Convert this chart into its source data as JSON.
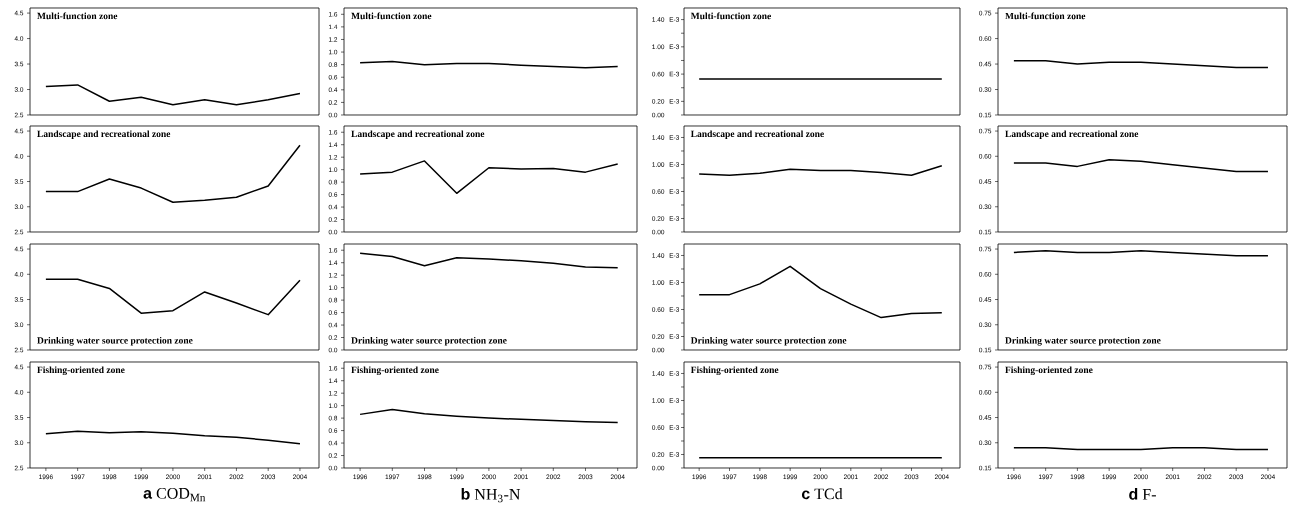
{
  "chart_data": [
    {
      "type": "line",
      "title": "Multi-function zone",
      "x": [
        1996,
        1997,
        1998,
        1999,
        2000,
        2001,
        2002,
        2003,
        2004
      ],
      "values": [
        3.06,
        3.09,
        2.77,
        2.85,
        2.7,
        2.8,
        2.7,
        2.8,
        2.92
      ],
      "color": "#000000",
      "xlim": [
        1995.5,
        2004.6
      ],
      "ylim": [
        2.5,
        4.6
      ],
      "yticks": [
        {
          "value": 2.5,
          "label": "2.5"
        },
        {
          "value": 3,
          "label": "3.0"
        },
        {
          "value": 3.5,
          "label": "3.5"
        },
        {
          "value": 4,
          "label": "4.0"
        },
        {
          "value": 4.5,
          "label": "4.5"
        }
      ],
      "tick_labels": "y"
    },
    {
      "type": "line",
      "title": "Multi-function zone",
      "x": [
        1996,
        1997,
        1998,
        1999,
        2000,
        2001,
        2002,
        2003,
        2004
      ],
      "values": [
        0.83,
        0.85,
        0.8,
        0.82,
        0.82,
        0.79,
        0.77,
        0.75,
        0.77
      ],
      "color": "#000000",
      "xlim": [
        1995.5,
        2004.6
      ],
      "ylim": [
        0,
        1.7
      ],
      "yticks": [
        {
          "value": 0,
          "label": "0.0"
        },
        {
          "value": 0.2,
          "label": "0.2"
        },
        {
          "value": 0.4,
          "label": "0.4"
        },
        {
          "value": 0.6,
          "label": "0.6"
        },
        {
          "value": 0.8,
          "label": "0.8"
        },
        {
          "value": 1,
          "label": "1.0"
        },
        {
          "value": 1.2,
          "label": "1.2"
        },
        {
          "value": 1.4,
          "label": "1.4"
        },
        {
          "value": 1.6,
          "label": "1.6"
        }
      ],
      "tick_labels": "y"
    },
    {
      "type": "line",
      "title": "Multi-function zone",
      "x": [
        1996,
        1997,
        1998,
        1999,
        2000,
        2001,
        2002,
        2003,
        2004
      ],
      "values": [
        0.53,
        0.53,
        0.53,
        0.53,
        0.53,
        0.53,
        0.53,
        0.53,
        0.53
      ],
      "color": "#000000",
      "xlim": [
        1995.5,
        2004.6
      ],
      "ylim": [
        0,
        1.57
      ],
      "yticks": [
        {
          "value": 0,
          "label": "0.00"
        },
        {
          "value": 0.2,
          "label": "0.20"
        },
        {
          "value": 0.4,
          "label": null
        },
        {
          "value": 0.6,
          "label": "0.60"
        },
        {
          "value": 0.8,
          "label": null
        },
        {
          "value": 1,
          "label": "1.00"
        },
        {
          "value": 1.2,
          "label": null
        },
        {
          "value": 1.4,
          "label": "1.40"
        }
      ],
      "annotations": [
        "E-3",
        "E-3",
        "E-3",
        "E-3"
      ],
      "tick_labels": "y"
    },
    {
      "type": "line",
      "title": "Multi-function zone",
      "x": [
        1996,
        1997,
        1998,
        1999,
        2000,
        2001,
        2002,
        2003,
        2004
      ],
      "values": [
        0.47,
        0.47,
        0.45,
        0.46,
        0.46,
        0.45,
        0.44,
        0.43,
        0.43
      ],
      "color": "#000000",
      "xlim": [
        1995.5,
        2004.6
      ],
      "ylim": [
        0.15,
        0.78
      ],
      "yticks": [
        {
          "value": 0.15,
          "label": "0.15"
        },
        {
          "value": 0.3,
          "label": "0.30"
        },
        {
          "value": 0.45,
          "label": "0.45"
        },
        {
          "value": 0.6,
          "label": "0.60"
        },
        {
          "value": 0.75,
          "label": "0.75"
        }
      ],
      "tick_labels": "y"
    },
    {
      "type": "line",
      "title": "Landscape and recreational zone",
      "x": [
        1996,
        1997,
        1998,
        1999,
        2000,
        2001,
        2002,
        2003,
        2004
      ],
      "values": [
        3.3,
        3.3,
        3.55,
        3.37,
        3.09,
        3.13,
        3.19,
        3.41,
        4.22
      ],
      "color": "#000000",
      "xlim": [
        1995.5,
        2004.6
      ],
      "ylim": [
        2.5,
        4.6
      ],
      "yticks": [
        {
          "value": 2.5,
          "label": "2.5"
        },
        {
          "value": 3,
          "label": "3.0"
        },
        {
          "value": 3.5,
          "label": "3.5"
        },
        {
          "value": 4,
          "label": "4.0"
        },
        {
          "value": 4.5,
          "label": "4.5"
        }
      ],
      "tick_labels": "y"
    },
    {
      "type": "line",
      "title": "Landscape and recreational zone",
      "x": [
        1996,
        1997,
        1998,
        1999,
        2000,
        2001,
        2002,
        2003,
        2004
      ],
      "values": [
        0.93,
        0.96,
        1.14,
        0.62,
        1.03,
        1.01,
        1.02,
        0.96,
        1.09
      ],
      "color": "#000000",
      "xlim": [
        1995.5,
        2004.6
      ],
      "ylim": [
        0,
        1.7
      ],
      "yticks": [
        {
          "value": 0,
          "label": "0.0"
        },
        {
          "value": 0.2,
          "label": "0.2"
        },
        {
          "value": 0.4,
          "label": "0.4"
        },
        {
          "value": 0.6,
          "label": "0.6"
        },
        {
          "value": 0.8,
          "label": "0.8"
        },
        {
          "value": 1,
          "label": "1.0"
        },
        {
          "value": 1.2,
          "label": "1.2"
        },
        {
          "value": 1.4,
          "label": "1.4"
        },
        {
          "value": 1.6,
          "label": "1.6"
        }
      ],
      "tick_labels": "y"
    },
    {
      "type": "line",
      "title": "Landscape and recreational zone",
      "x": [
        1996,
        1997,
        1998,
        1999,
        2000,
        2001,
        2002,
        2003,
        2004
      ],
      "values": [
        0.86,
        0.84,
        0.87,
        0.93,
        0.91,
        0.91,
        0.88,
        0.84,
        0.98
      ],
      "color": "#000000",
      "xlim": [
        1995.5,
        2004.6
      ],
      "ylim": [
        0,
        1.57
      ],
      "yticks": [
        {
          "value": 0,
          "label": "0.00"
        },
        {
          "value": 0.2,
          "label": "0.20"
        },
        {
          "value": 0.4,
          "label": null
        },
        {
          "value": 0.6,
          "label": "0.60"
        },
        {
          "value": 0.8,
          "label": null
        },
        {
          "value": 1,
          "label": "1.00"
        },
        {
          "value": 1.2,
          "label": null
        },
        {
          "value": 1.4,
          "label": "1.40"
        }
      ],
      "annotations": [
        "E-3",
        "E-3",
        "E-3",
        "E-3"
      ],
      "tick_labels": "y"
    },
    {
      "type": "line",
      "title": "Landscape and recreational zone",
      "x": [
        1996,
        1997,
        1998,
        1999,
        2000,
        2001,
        2002,
        2003,
        2004
      ],
      "values": [
        0.56,
        0.56,
        0.54,
        0.58,
        0.57,
        0.55,
        0.53,
        0.51,
        0.51
      ],
      "color": "#000000",
      "xlim": [
        1995.5,
        2004.6
      ],
      "ylim": [
        0.15,
        0.78
      ],
      "yticks": [
        {
          "value": 0.15,
          "label": "0.15"
        },
        {
          "value": 0.3,
          "label": "0.30"
        },
        {
          "value": 0.45,
          "label": "0.45"
        },
        {
          "value": 0.6,
          "label": "0.60"
        },
        {
          "value": 0.75,
          "label": "0.75"
        }
      ],
      "tick_labels": "y"
    },
    {
      "type": "line",
      "title": "Drinking water source protection zone",
      "x": [
        1996,
        1997,
        1998,
        1999,
        2000,
        2001,
        2002,
        2003,
        2004
      ],
      "values": [
        3.9,
        3.9,
        3.72,
        3.23,
        3.28,
        3.65,
        3.43,
        3.2,
        3.88
      ],
      "color": "#000000",
      "xlim": [
        1995.5,
        2004.6
      ],
      "ylim": [
        2.5,
        4.6
      ],
      "yticks": [
        {
          "value": 2.5,
          "label": "2.5"
        },
        {
          "value": 3,
          "label": "3.0"
        },
        {
          "value": 3.5,
          "label": "3.5"
        },
        {
          "value": 4,
          "label": "4.0"
        },
        {
          "value": 4.5,
          "label": "4.5"
        }
      ],
      "tick_labels": "y"
    },
    {
      "type": "line",
      "title": "Drinking water source protection zone",
      "x": [
        1996,
        1997,
        1998,
        1999,
        2000,
        2001,
        2002,
        2003,
        2004
      ],
      "values": [
        1.55,
        1.5,
        1.35,
        1.48,
        1.46,
        1.43,
        1.39,
        1.33,
        1.32
      ],
      "color": "#000000",
      "xlim": [
        1995.5,
        2004.6
      ],
      "ylim": [
        0,
        1.7
      ],
      "yticks": [
        {
          "value": 0,
          "label": "0.0"
        },
        {
          "value": 0.2,
          "label": "0.2"
        },
        {
          "value": 0.4,
          "label": "0.4"
        },
        {
          "value": 0.6,
          "label": "0.6"
        },
        {
          "value": 0.8,
          "label": "0.8"
        },
        {
          "value": 1,
          "label": "1.0"
        },
        {
          "value": 1.2,
          "label": "1.2"
        },
        {
          "value": 1.4,
          "label": "1.4"
        },
        {
          "value": 1.6,
          "label": "1.6"
        }
      ],
      "tick_labels": "y"
    },
    {
      "type": "line",
      "title": "Drinking water source protection zone",
      "x": [
        1996,
        1997,
        1998,
        1999,
        2000,
        2001,
        2002,
        2003,
        2004
      ],
      "values": [
        0.82,
        0.82,
        0.98,
        1.24,
        0.91,
        0.68,
        0.48,
        0.54,
        0.55
      ],
      "color": "#000000",
      "xlim": [
        1995.5,
        2004.6
      ],
      "ylim": [
        0,
        1.57
      ],
      "yticks": [
        {
          "value": 0,
          "label": "0.00"
        },
        {
          "value": 0.2,
          "label": "0.20"
        },
        {
          "value": 0.4,
          "label": null
        },
        {
          "value": 0.6,
          "label": "0.60"
        },
        {
          "value": 0.8,
          "label": null
        },
        {
          "value": 1,
          "label": "1.00"
        },
        {
          "value": 1.2,
          "label": null
        },
        {
          "value": 1.4,
          "label": "1.40"
        }
      ],
      "annotations": [
        "E-3",
        "E-3",
        "E-3",
        "E-3"
      ],
      "tick_labels": "y"
    },
    {
      "type": "line",
      "title": "Drinking water source protection zone",
      "x": [
        1996,
        1997,
        1998,
        1999,
        2000,
        2001,
        2002,
        2003,
        2004
      ],
      "values": [
        0.73,
        0.74,
        0.73,
        0.73,
        0.74,
        0.73,
        0.72,
        0.71,
        0.71
      ],
      "color": "#000000",
      "xlim": [
        1995.5,
        2004.6
      ],
      "ylim": [
        0.15,
        0.78
      ],
      "yticks": [
        {
          "value": 0.15,
          "label": "0.15"
        },
        {
          "value": 0.3,
          "label": "0.30"
        },
        {
          "value": 0.45,
          "label": "0.45"
        },
        {
          "value": 0.6,
          "label": "0.60"
        },
        {
          "value": 0.75,
          "label": "0.75"
        }
      ],
      "tick_labels": "y"
    },
    {
      "type": "line",
      "title": "Fishing-oriented zone",
      "x": [
        1996,
        1997,
        1998,
        1999,
        2000,
        2001,
        2002,
        2003,
        2004
      ],
      "values": [
        3.18,
        3.23,
        3.2,
        3.22,
        3.19,
        3.14,
        3.11,
        3.05,
        2.98
      ],
      "color": "#000000",
      "xlim": [
        1995.5,
        2004.6
      ],
      "ylim": [
        2.5,
        4.6
      ],
      "yticks": [
        {
          "value": 2.5,
          "label": "2.5"
        },
        {
          "value": 3,
          "label": "3.0"
        },
        {
          "value": 3.5,
          "label": "3.5"
        },
        {
          "value": 4,
          "label": "4.0"
        },
        {
          "value": 4.5,
          "label": "4.5"
        }
      ],
      "xticks": [
        1996,
        1997,
        1998,
        1999,
        2000,
        2001,
        2002,
        2003,
        2004
      ],
      "xlabel": "**a** COD$_{Mn}$"
    },
    {
      "type": "line",
      "title": "Fishing-oriented zone",
      "x": [
        1996,
        1997,
        1998,
        1999,
        2000,
        2001,
        2002,
        2003,
        2004
      ],
      "values": [
        0.86,
        0.94,
        0.87,
        0.83,
        0.8,
        0.78,
        0.76,
        0.74,
        0.73
      ],
      "color": "#000000",
      "xlim": [
        1995.5,
        2004.6
      ],
      "ylim": [
        0,
        1.7
      ],
      "yticks": [
        {
          "value": 0,
          "label": "0.0"
        },
        {
          "value": 0.2,
          "label": "0.2"
        },
        {
          "value": 0.4,
          "label": "0.4"
        },
        {
          "value": 0.6,
          "label": "0.6"
        },
        {
          "value": 0.8,
          "label": "0.8"
        },
        {
          "value": 1,
          "label": "1.0"
        },
        {
          "value": 1.2,
          "label": "1.2"
        },
        {
          "value": 1.4,
          "label": "1.4"
        },
        {
          "value": 1.6,
          "label": "1.6"
        }
      ],
      "xticks": [
        1996,
        1997,
        1998,
        1999,
        2000,
        2001,
        2002,
        2003,
        2004
      ],
      "xlabel": "**b** NH$_{3}$-N"
    },
    {
      "type": "line",
      "title": "Fishing-oriented zone",
      "x": [
        1996,
        1997,
        1998,
        1999,
        2000,
        2001,
        2002,
        2003,
        2004
      ],
      "values": [
        0.15,
        0.15,
        0.15,
        0.15,
        0.15,
        0.15,
        0.15,
        0.15,
        0.15
      ],
      "color": "#000000",
      "xlim": [
        1995.5,
        2004.6
      ],
      "ylim": [
        0,
        1.57
      ],
      "yticks": [
        {
          "value": 0,
          "label": "0.00"
        },
        {
          "value": 0.2,
          "label": "0.20"
        },
        {
          "value": 0.4,
          "label": null
        },
        {
          "value": 0.6,
          "label": "0.60"
        },
        {
          "value": 0.8,
          "label": null
        },
        {
          "value": 1,
          "label": "1.00"
        },
        {
          "value": 1.2,
          "label": null
        },
        {
          "value": 1.4,
          "label": "1.40"
        }
      ],
      "annotations": [
        "E-3",
        "E-3",
        "E-3",
        "E-3"
      ],
      "xticks": [
        1996,
        1997,
        1998,
        1999,
        2000,
        2001,
        2002,
        2003,
        2004
      ],
      "xlabel": "**c** TCd"
    },
    {
      "type": "line",
      "title": "Fishing-oriented zone",
      "x": [
        1996,
        1997,
        1998,
        1999,
        2000,
        2001,
        2002,
        2003,
        2004
      ],
      "values": [
        0.27,
        0.27,
        0.26,
        0.26,
        0.26,
        0.27,
        0.27,
        0.26,
        0.26
      ],
      "color": "#000000",
      "xlim": [
        1995.5,
        2004.6
      ],
      "ylim": [
        0.15,
        0.78
      ],
      "yticks": [
        {
          "value": 0.15,
          "label": "0.15"
        },
        {
          "value": 0.3,
          "label": "0.30"
        },
        {
          "value": 0.45,
          "label": "0.45"
        },
        {
          "value": 0.6,
          "label": "0.60"
        },
        {
          "value": 0.75,
          "label": "0.75"
        }
      ],
      "xticks": [
        1996,
        1997,
        1998,
        1999,
        2000,
        2001,
        2002,
        2003,
        2004
      ],
      "xlabel": "**d** F-"
    }
  ]
}
